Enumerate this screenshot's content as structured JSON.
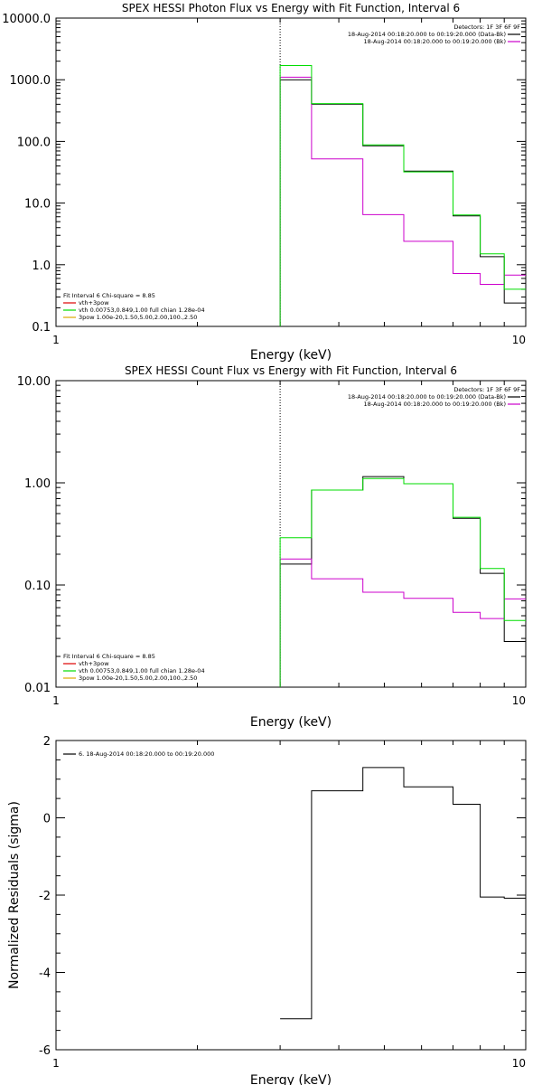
{
  "chart_data": [
    {
      "type": "line",
      "step": true,
      "title": "SPEX HESSI Photon Flux vs Energy with Fit Function, Interval 6",
      "xlabel": "Energy (keV)",
      "ylabel": "",
      "xscale": "log",
      "yscale": "log",
      "xlim": [
        1,
        10
      ],
      "ylim": [
        0.1,
        10000
      ],
      "xticks": [
        1,
        10
      ],
      "xtick_labels": [
        "1",
        "10"
      ],
      "yticks": [
        0.1,
        1,
        10,
        100,
        1000,
        10000
      ],
      "ytick_labels": [
        "0.1",
        "1.0",
        "10.0",
        "100.0",
        "1000.0",
        "10000.0"
      ],
      "vline_x": 3.0,
      "edges": [
        3.0,
        3.5,
        4.5,
        5.5,
        7.0,
        8.0,
        9.0,
        10.0
      ],
      "series": [
        {
          "name": "",
          "color": "#000000",
          "values": [
            1000,
            400,
            85,
            33,
            6.2,
            1.35,
            0.24
          ]
        },
        {
          "name": "",
          "color": "#cc00cc",
          "values": [
            1100,
            52,
            6.5,
            2.4,
            0.72,
            0.48,
            0.68
          ]
        },
        {
          "name": "",
          "color": "#00dd00",
          "values": [
            1700,
            410,
            88,
            32,
            6.4,
            1.5,
            0.4
          ]
        }
      ],
      "legend_right": {
        "placement": "top-right",
        "header": "Detectors: 1F 3F 6F 9F",
        "lines": [
          {
            "text": "18-Aug-2014 00:18:20.000 to 00:19:20.000 (Data-Bk)",
            "color": "#000000"
          },
          {
            "text": "18-Aug-2014 00:18:20.000 to 00:19:20.000 (Bk)",
            "color": "#cc00cc"
          }
        ]
      },
      "legend_left": {
        "placement": "bottom-left",
        "header": "Fit Interval 6   Chi-square = 8.85",
        "lines": [
          {
            "text": "vth+3pow",
            "color": "#dd0000"
          },
          {
            "text": "vth 0.00753,0.849,1.00  full chian 1.28e-04",
            "color": "#00dd00"
          },
          {
            "text": "3pow 1.00e-20,1.50,5.00,2.00,100.,2.50",
            "color": "#ddaa00"
          }
        ]
      }
    },
    {
      "type": "line",
      "step": true,
      "title": "SPEX HESSI Count Flux vs Energy with Fit Function, Interval 6",
      "xlabel": "Energy (keV)",
      "ylabel": "",
      "xscale": "log",
      "yscale": "log",
      "xlim": [
        1,
        10
      ],
      "ylim": [
        0.01,
        10
      ],
      "xticks": [
        1,
        10
      ],
      "xtick_labels": [
        "1",
        "10"
      ],
      "yticks": [
        0.01,
        0.1,
        1,
        10
      ],
      "ytick_labels": [
        "0.01",
        "0.10",
        "1.00",
        "10.00"
      ],
      "vline_x": 3.0,
      "edges": [
        3.0,
        3.5,
        4.5,
        5.5,
        7.0,
        8.0,
        9.0,
        10.0
      ],
      "series": [
        {
          "name": "",
          "color": "#000000",
          "values": [
            0.16,
            0.85,
            1.15,
            0.98,
            0.45,
            0.13,
            0.028
          ]
        },
        {
          "name": "",
          "color": "#cc00cc",
          "values": [
            0.18,
            0.115,
            0.085,
            0.074,
            0.054,
            0.047,
            0.073
          ]
        },
        {
          "name": "",
          "color": "#00dd00",
          "values": [
            0.29,
            0.85,
            1.1,
            0.98,
            0.46,
            0.145,
            0.045
          ]
        }
      ],
      "legend_right": {
        "placement": "top-right",
        "header": "Detectors: 1F 3F 6F 9F",
        "lines": [
          {
            "text": "18-Aug-2014 00:18:20.000 to 00:19:20.000 (Data-Bk)",
            "color": "#000000"
          },
          {
            "text": "18-Aug-2014 00:18:20.000 to 00:19:20.000 (Bk)",
            "color": "#cc00cc"
          }
        ]
      },
      "legend_left": {
        "placement": "bottom-left",
        "header": "Fit Interval 6   Chi-square = 8.85",
        "lines": [
          {
            "text": "vth+3pow",
            "color": "#dd0000"
          },
          {
            "text": "vth 0.00753,0.849,1.00  full chian 1.28e-04",
            "color": "#00dd00"
          },
          {
            "text": "3pow 1.00e-20,1.50,5.00,2.00,100.,2.50",
            "color": "#ddaa00"
          }
        ]
      }
    },
    {
      "type": "line",
      "step": true,
      "title": "",
      "xlabel": "Energy (keV)",
      "ylabel": "Normalized Residuals (sigma)",
      "xscale": "log",
      "yscale": "linear",
      "xlim": [
        1,
        10
      ],
      "ylim": [
        -6,
        2
      ],
      "xticks": [
        1,
        10
      ],
      "xtick_labels": [
        "1",
        "10"
      ],
      "yticks": [
        -6,
        -4,
        -2,
        0,
        2
      ],
      "ytick_labels": [
        "-6",
        "-4",
        "-2",
        "0",
        "2"
      ],
      "edges": [
        3.0,
        3.5,
        4.5,
        5.5,
        7.0,
        8.0,
        9.0,
        10.0
      ],
      "series": [
        {
          "name": "",
          "color": "#000000",
          "values": [
            -5.2,
            0.7,
            1.3,
            0.8,
            0.35,
            -2.05,
            -2.08
          ]
        }
      ],
      "legend_left": {
        "placement": "top-left",
        "lines": [
          {
            "text": "6. 18-Aug-2014 00:18:20.000 to 00:19:20.000",
            "color": "#000000"
          }
        ]
      }
    }
  ]
}
